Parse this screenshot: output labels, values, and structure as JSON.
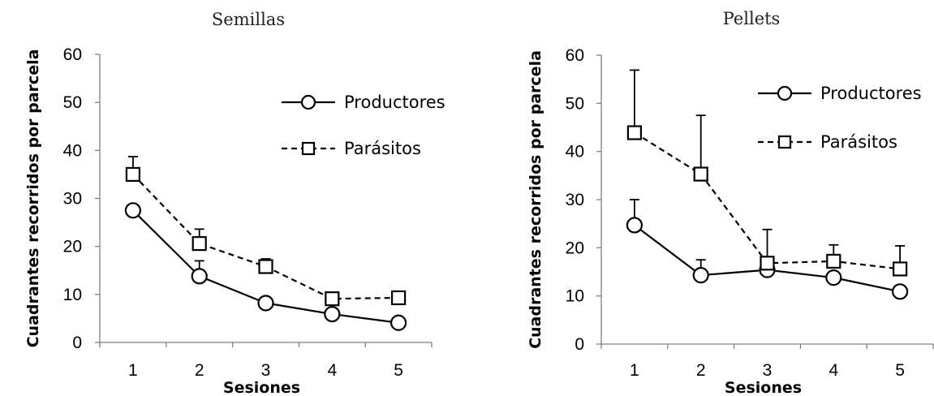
{
  "chart_data": [
    {
      "type": "line",
      "title": "Semillas",
      "xlabel": "Sesiones",
      "ylabel": "Cuadrantes recorridos por parcela",
      "x": [
        1,
        2,
        3,
        4,
        5
      ],
      "x_tick_labels": [
        "1",
        "2",
        "3",
        "4",
        "5"
      ],
      "y_tick_labels": [
        "0",
        "10",
        "20",
        "30",
        "40",
        "50",
        "60"
      ],
      "ylim": [
        0,
        60
      ],
      "legend_position": "top-right",
      "grid": false,
      "series": [
        {
          "name": "Productores",
          "marker": "circle",
          "line_style": "solid",
          "values": [
            27.5,
            13.8,
            8.2,
            5.9,
            4.1
          ],
          "error_upper": [
            null,
            3.2,
            null,
            null,
            null
          ]
        },
        {
          "name": "Parásitos",
          "marker": "square",
          "line_style": "dashed",
          "values": [
            35.0,
            20.6,
            15.8,
            9.1,
            9.3
          ],
          "error_upper": [
            3.7,
            3.0,
            1.6,
            null,
            null
          ]
        }
      ]
    },
    {
      "type": "line",
      "title": "Pellets",
      "xlabel": "Sesiones",
      "ylabel": "Cuadrantes recorridos por parcela",
      "x": [
        1,
        2,
        3,
        4,
        5
      ],
      "x_tick_labels": [
        "1",
        "2",
        "3",
        "4",
        "5"
      ],
      "y_tick_labels": [
        "0",
        "10",
        "20",
        "30",
        "40",
        "50",
        "60"
      ],
      "ylim": [
        0,
        60
      ],
      "legend_position": "top-right",
      "grid": false,
      "series": [
        {
          "name": "Productores",
          "marker": "circle",
          "line_style": "solid",
          "values": [
            24.7,
            14.3,
            15.4,
            13.8,
            10.9
          ],
          "error_upper": [
            5.3,
            3.2,
            null,
            null,
            null
          ]
        },
        {
          "name": "Parásitos",
          "marker": "square",
          "line_style": "dashed",
          "values": [
            43.9,
            35.3,
            16.8,
            17.2,
            15.6
          ],
          "error_upper": [
            13.0,
            12.2,
            7.0,
            3.4,
            4.8
          ]
        }
      ]
    }
  ]
}
